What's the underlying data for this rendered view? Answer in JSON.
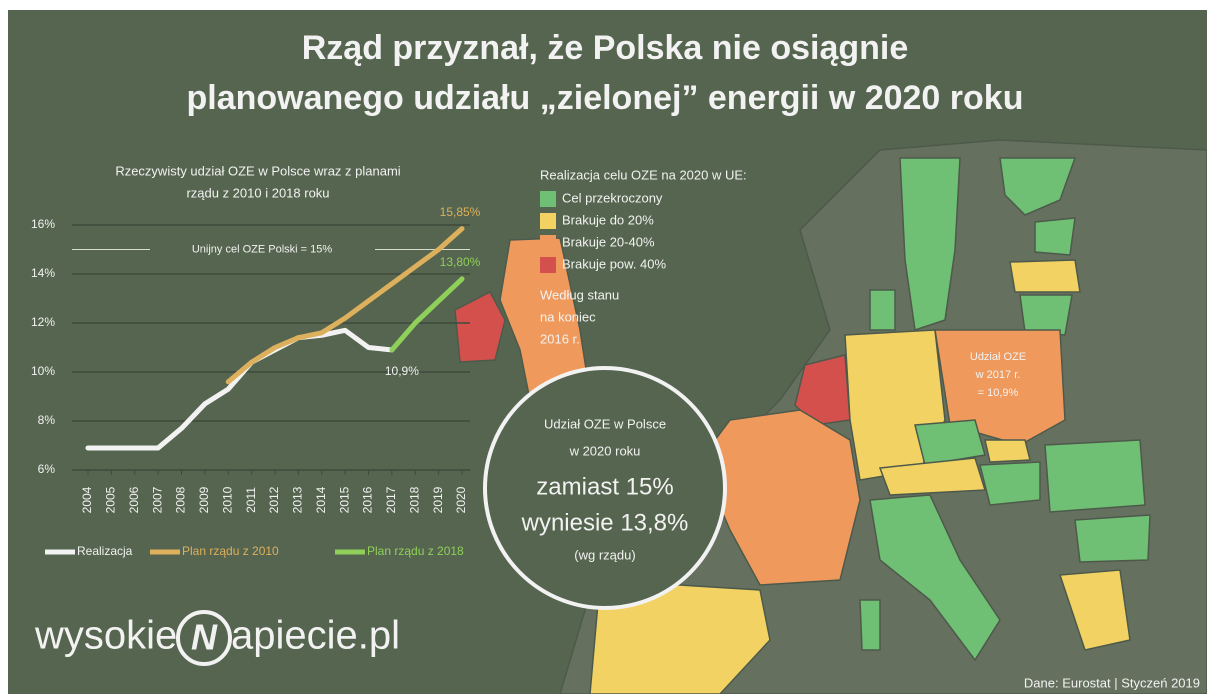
{
  "title_lines": [
    "Rząd przyznał, że Polska nie osiągnie",
    "planowanego udziału „zielonej” energii w 2020 roku"
  ],
  "chart_data": {
    "type": "line",
    "title_lines": [
      "Rzeczywisty udział OZE w Polsce wraz z planami",
      "rządu z 2010 i 2018 roku"
    ],
    "x": [
      2004,
      2005,
      2006,
      2007,
      2008,
      2009,
      2010,
      2011,
      2012,
      2013,
      2014,
      2015,
      2016,
      2017,
      2018,
      2019,
      2020
    ],
    "xlim": [
      2004,
      2020
    ],
    "xticks": [
      2004,
      2005,
      2006,
      2007,
      2008,
      2009,
      2010,
      2011,
      2012,
      2013,
      2014,
      2015,
      2016,
      2017,
      2018,
      2019,
      2020
    ],
    "ylim": [
      6,
      16
    ],
    "yticks": [
      {
        "value": 6,
        "label": "6%"
      },
      {
        "value": 8,
        "label": "8%"
      },
      {
        "value": 10,
        "label": "10%"
      },
      {
        "value": 12,
        "label": "12%"
      },
      {
        "value": 14,
        "label": "14%"
      },
      {
        "value": 16,
        "label": "16%"
      }
    ],
    "grid": true,
    "target": {
      "value": 15,
      "label": "Unijny cel OZE Polski = 15%"
    },
    "series": [
      {
        "name": "Realizacja",
        "color": "#f2f2f2",
        "values": [
          6.9,
          6.9,
          6.9,
          6.9,
          7.7,
          8.7,
          9.3,
          10.4,
          10.9,
          11.4,
          11.5,
          11.7,
          11.0,
          10.9,
          null,
          null,
          null
        ],
        "value_labels": [
          null,
          null,
          null,
          null,
          null,
          null,
          null,
          null,
          null,
          null,
          null,
          null,
          null,
          "10,9%",
          null,
          null,
          null
        ]
      },
      {
        "name": "Plan rządu z 2010",
        "color": "#dcb05c",
        "values": [
          null,
          null,
          null,
          null,
          null,
          null,
          9.6,
          10.4,
          11.0,
          11.4,
          11.6,
          12.2,
          12.9,
          13.6,
          14.3,
          15.0,
          15.85
        ],
        "value_labels": [
          null,
          null,
          null,
          null,
          null,
          null,
          null,
          null,
          null,
          null,
          null,
          null,
          null,
          null,
          null,
          null,
          "15,85%"
        ]
      },
      {
        "name": "Plan rządu z 2018",
        "color": "#8fd05a",
        "values": [
          null,
          null,
          null,
          null,
          null,
          null,
          null,
          null,
          null,
          null,
          null,
          null,
          null,
          10.9,
          12.0,
          12.9,
          13.8
        ],
        "value_labels": [
          null,
          null,
          null,
          null,
          null,
          null,
          null,
          null,
          null,
          null,
          null,
          null,
          null,
          null,
          null,
          null,
          "13,80%"
        ]
      }
    ]
  },
  "map_legend": {
    "title": "Realizacja celu OZE na 2020 w UE:",
    "items": [
      {
        "label": "Cel przekroczony",
        "color": "#6fbf74"
      },
      {
        "label": "Brakuje do 20%",
        "color": "#f2d263"
      },
      {
        "label": "Brakuje 20-40%",
        "color": "#ef9a5c"
      },
      {
        "label": "Brakuje pow. 40%",
        "color": "#d4504c"
      }
    ],
    "note_lines": [
      "Według stanu",
      "na koniec",
      "2016 r."
    ]
  },
  "map_note_lines": [
    "Udział OZE",
    "w 2017 r.",
    "= 10,9%"
  ],
  "circle_lines": [
    "Udział OZE w Polsce",
    "w 2020 roku",
    "zamiast 15%",
    "wyniesie 13,8%",
    "(wg rządu)"
  ],
  "logo": {
    "left": "wysokie",
    "mark": "N",
    "right": "apiecie.pl"
  },
  "source": "Dane: Eurostat  |  Styczeń 2019"
}
